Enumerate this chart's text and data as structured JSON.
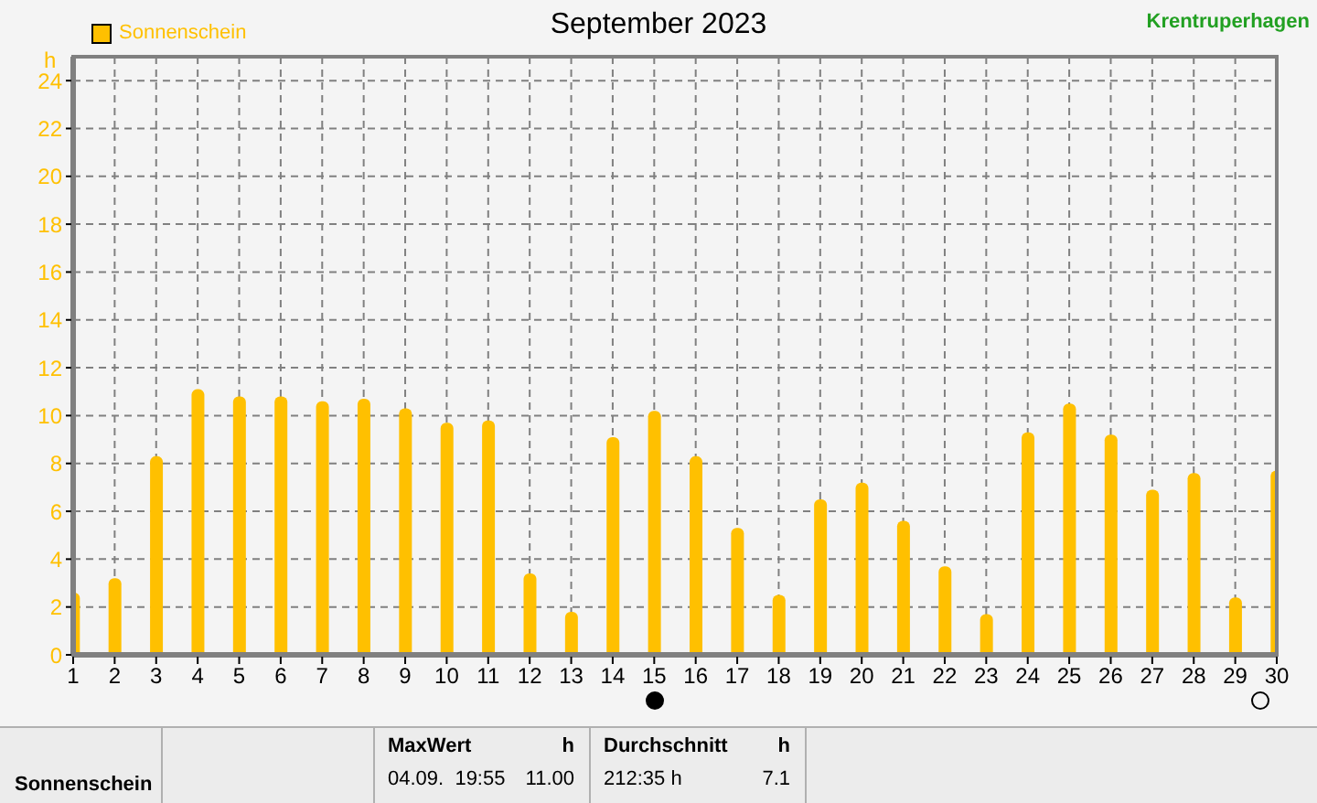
{
  "chart_data": {
    "type": "bar",
    "title": "September 2023",
    "ylabel": "h",
    "x": [
      1,
      2,
      3,
      4,
      5,
      6,
      7,
      8,
      9,
      10,
      11,
      12,
      13,
      14,
      15,
      16,
      17,
      18,
      19,
      20,
      21,
      22,
      23,
      24,
      25,
      26,
      27,
      28,
      29,
      30
    ],
    "series": [
      {
        "name": "Sonnenschein",
        "color": "#ffc000",
        "values": [
          2.6,
          3.2,
          8.3,
          11.1,
          10.8,
          10.8,
          10.6,
          10.7,
          10.3,
          9.7,
          9.8,
          3.4,
          1.8,
          9.1,
          10.2,
          8.3,
          5.3,
          2.5,
          6.5,
          7.2,
          5.6,
          3.7,
          1.7,
          9.3,
          10.5,
          9.2,
          6.9,
          7.6,
          2.4,
          7.7
        ]
      }
    ],
    "xlim": [
      1,
      30
    ],
    "xticks": [
      1,
      2,
      3,
      4,
      5,
      6,
      7,
      8,
      9,
      10,
      11,
      12,
      13,
      14,
      15,
      16,
      17,
      18,
      19,
      20,
      21,
      22,
      23,
      24,
      25,
      26,
      27,
      28,
      29,
      30
    ],
    "ylim": [
      0,
      25
    ],
    "yticks": [
      0,
      2,
      4,
      6,
      8,
      10,
      12,
      14,
      16,
      18,
      20,
      22,
      24
    ],
    "grid": true,
    "legend": "top left",
    "annotations": [
      "Krentruperhagen",
      "Sonnenschein",
      "MaxWert",
      "h",
      "04.09.  19:55",
      "11.00",
      "Durchschnitt",
      "h",
      "212:35 h",
      "7.1"
    ]
  }
}
